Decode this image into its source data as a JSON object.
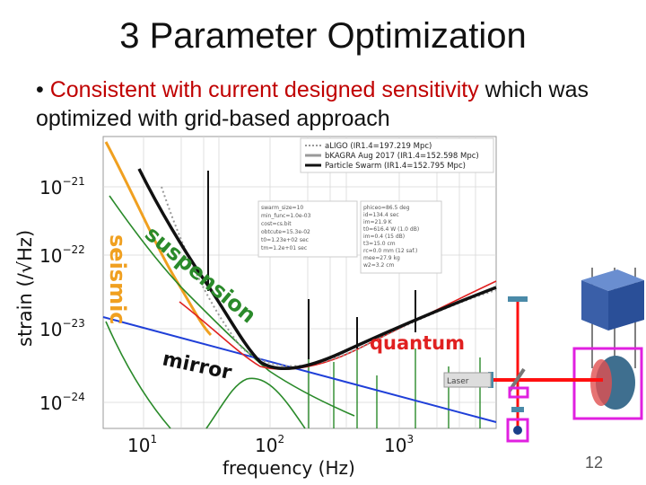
{
  "slide": {
    "title": "3 Parameter Optimization",
    "bullet_marker": "•",
    "bullet_red": "Consistent with current designed sensitivity",
    "bullet_rest": " which was optimized with grid-based approach",
    "page_number": "12"
  },
  "plot": {
    "ylabel": "strain (/√Hz)",
    "xlabel": "frequency (Hz)",
    "xticks": [
      {
        "base": "10",
        "exp": "1"
      },
      {
        "base": "10",
        "exp": "2"
      },
      {
        "base": "10",
        "exp": "3"
      }
    ],
    "yticks": [
      {
        "base": "10",
        "exp": "−21"
      },
      {
        "base": "10",
        "exp": "−22"
      },
      {
        "base": "10",
        "exp": "−23"
      },
      {
        "base": "10",
        "exp": "−24"
      }
    ],
    "legend": [
      "aLIGO (IR1.4=197.219 Mpc)",
      "bKAGRA Aug 2017 (IR1.4=152.598 Mpc)",
      "Particle Swarm (IR1.4=152.795 Mpc)"
    ],
    "labels": {
      "seismic": "seismic",
      "suspension": "suspension",
      "mirror": "mirror",
      "quantum": "quantum"
    },
    "param_box_left": [
      "swarm_size=10",
      "min_func=1.0e-03",
      "cost=cs.bit",
      "obtcute=15.3e-02",
      "t0=1.23e+02 sec",
      "tm=1.2e+01 sec"
    ],
    "param_box_right": [
      "phiceo=86.5 deg",
      "id=134.4 sec",
      "im=21.9 K",
      "t0=616.4 W (1.0 dB)",
      "im=0.4 (15 dB)",
      "t3=15.0 cm",
      "rc=0.0 mm (12 saf.)",
      "mee=27.9 kg",
      "w2=3.2 cm"
    ]
  },
  "setup": {
    "laser_label": "Laser"
  }
}
